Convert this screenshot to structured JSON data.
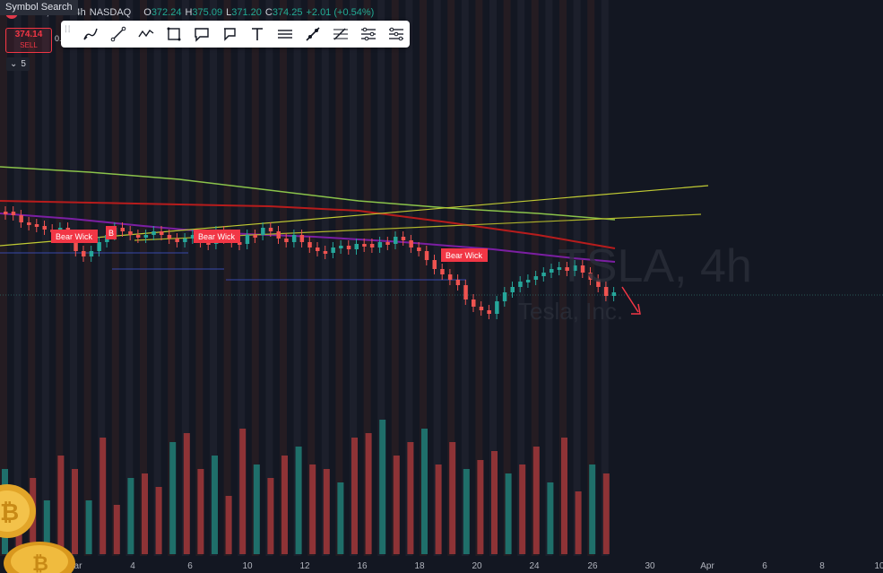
{
  "tooltip": "Symbol Search",
  "legend": {
    "symbol": "Tesla, Inc.",
    "timeframe": "4h",
    "exchange": "NASDAQ",
    "open_label": "O",
    "open": "372.24",
    "high_label": "H",
    "high": "375.09",
    "low_label": "L",
    "low": "371.20",
    "close_label": "C",
    "close": "374.25",
    "change": "+2.01 (+0.54%)"
  },
  "sell_button": {
    "price": "374.14",
    "label": "SELL"
  },
  "small_label": "0.",
  "indicators_toggle": {
    "count": "5"
  },
  "drawing_tools": [
    "brush-icon",
    "trend-line-icon",
    "polyline-icon",
    "rectangle-icon",
    "callout-icon",
    "comment-icon",
    "text-icon",
    "parallel-lines-icon",
    "ray-icon",
    "fib-retracement-icon",
    "fib-channel-icon",
    "fib-extension-icon"
  ],
  "watermark": {
    "ticker": "TSLA, 4h",
    "name": "Tesla, Inc."
  },
  "annotations": [
    "Bear Wick",
    "B",
    "Bear Wick",
    "Bear Wick"
  ],
  "x_axis_labels": [
    "ar",
    "4",
    "6",
    "10",
    "12",
    "16",
    "18",
    "20",
    "24",
    "26",
    "30",
    "Apr",
    "6",
    "8",
    "10"
  ],
  "colors": {
    "background": "#131722",
    "up": "#26a69a",
    "down": "#ef5350",
    "annotation": "#f23645",
    "accent": "#22ab94"
  },
  "chart_data": {
    "type": "candlestick",
    "x_axis_labels": [
      "ar",
      "4",
      "6",
      "10",
      "12",
      "16",
      "18",
      "20",
      "24",
      "26",
      "30",
      "Apr",
      "6",
      "8",
      "10"
    ],
    "last_close": 374.25,
    "series": [
      {
        "name": "price"
      },
      {
        "name": "volume"
      }
    ]
  }
}
